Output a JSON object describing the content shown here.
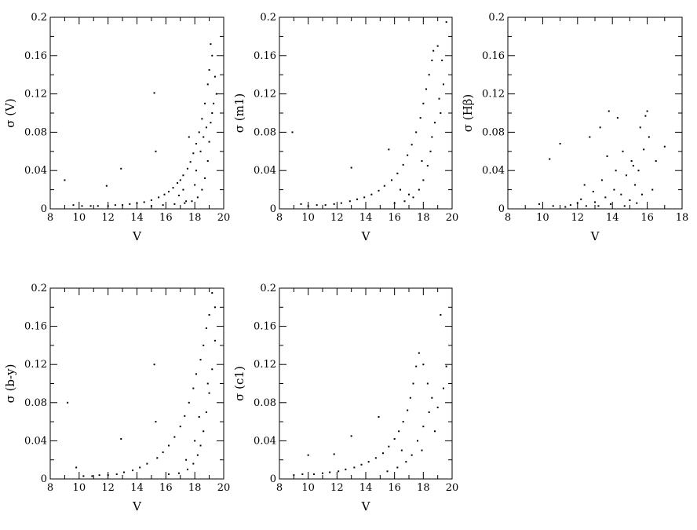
{
  "chart_data": [
    {
      "type": "scatter",
      "xlabel": "V",
      "ylabel": "σ (V)",
      "xlim": [
        8,
        20
      ],
      "ylim": [
        0,
        0.2
      ],
      "xticks": [
        "8",
        "10",
        "12",
        "14",
        "16",
        "18",
        "20"
      ],
      "yticks": [
        "0",
        "0.04",
        "0.08",
        "0.12",
        "0.16",
        "0.2"
      ],
      "series": [
        {
          "points": [
            [
              9.0,
              0.03
            ],
            [
              9.6,
              0.004
            ],
            [
              10.2,
              0.003
            ],
            [
              10.8,
              0.003
            ],
            [
              11.3,
              0.003
            ],
            [
              11.9,
              0.024
            ],
            [
              12.0,
              0.003
            ],
            [
              12.5,
              0.004
            ],
            [
              12.9,
              0.042
            ],
            [
              13.0,
              0.004
            ],
            [
              13.5,
              0.005
            ],
            [
              14.0,
              0.006
            ],
            [
              14.5,
              0.007
            ],
            [
              15.0,
              0.009
            ],
            [
              15.2,
              0.121
            ],
            [
              15.3,
              0.06
            ],
            [
              15.5,
              0.012
            ],
            [
              15.9,
              0.015
            ],
            [
              16.2,
              0.018
            ],
            [
              16.5,
              0.022
            ],
            [
              16.8,
              0.027
            ],
            [
              17.0,
              0.03
            ],
            [
              17.2,
              0.035
            ],
            [
              17.5,
              0.042
            ],
            [
              17.7,
              0.049
            ],
            [
              17.9,
              0.058
            ],
            [
              18.1,
              0.068
            ],
            [
              18.3,
              0.08
            ],
            [
              18.5,
              0.094
            ],
            [
              18.7,
              0.11
            ],
            [
              18.9,
              0.13
            ],
            [
              19.0,
              0.145
            ],
            [
              19.1,
              0.172
            ],
            [
              19.2,
              0.16
            ],
            [
              15.0,
              0.003
            ],
            [
              15.8,
              0.004
            ],
            [
              16.6,
              0.005
            ],
            [
              17.3,
              0.006
            ],
            [
              17.8,
              0.008
            ],
            [
              18.2,
              0.012
            ],
            [
              18.5,
              0.02
            ],
            [
              18.7,
              0.032
            ],
            [
              18.9,
              0.05
            ],
            [
              19.0,
              0.07
            ],
            [
              19.1,
              0.09
            ],
            [
              19.3,
              0.11
            ],
            [
              19.4,
              0.138
            ],
            [
              18.1,
              0.04
            ],
            [
              18.4,
              0.06
            ],
            [
              18.6,
              0.075
            ],
            [
              18.8,
              0.085
            ],
            [
              19.2,
              0.1
            ],
            [
              17.4,
              0.008
            ],
            [
              16.9,
              0.014
            ],
            [
              19.5,
              0.12
            ],
            [
              17.6,
              0.075
            ],
            [
              17.2,
              0.02
            ],
            [
              18.0,
              0.025
            ]
          ]
        }
      ]
    },
    {
      "type": "scatter",
      "xlabel": "V",
      "ylabel": "σ (m1)",
      "xlim": [
        8,
        20
      ],
      "ylim": [
        0,
        0.2
      ],
      "xticks": [
        "8",
        "10",
        "12",
        "14",
        "16",
        "18",
        "20"
      ],
      "yticks": [
        "0",
        "0.04",
        "0.08",
        "0.12",
        "0.16",
        "0.2"
      ],
      "series": [
        {
          "points": [
            [
              8.9,
              0.08
            ],
            [
              9.5,
              0.005
            ],
            [
              10.0,
              0.003
            ],
            [
              10.6,
              0.004
            ],
            [
              11.2,
              0.004
            ],
            [
              11.8,
              0.005
            ],
            [
              12.3,
              0.006
            ],
            [
              12.9,
              0.008
            ],
            [
              13.0,
              0.043
            ],
            [
              13.4,
              0.01
            ],
            [
              13.9,
              0.012
            ],
            [
              14.4,
              0.015
            ],
            [
              14.9,
              0.019
            ],
            [
              15.3,
              0.024
            ],
            [
              15.6,
              0.062
            ],
            [
              15.8,
              0.03
            ],
            [
              16.2,
              0.037
            ],
            [
              16.6,
              0.046
            ],
            [
              16.9,
              0.056
            ],
            [
              17.2,
              0.067
            ],
            [
              17.5,
              0.08
            ],
            [
              17.8,
              0.095
            ],
            [
              18.0,
              0.11
            ],
            [
              18.2,
              0.125
            ],
            [
              18.4,
              0.14
            ],
            [
              18.6,
              0.155
            ],
            [
              18.7,
              0.165
            ],
            [
              19.0,
              0.17
            ],
            [
              19.3,
              0.155
            ],
            [
              19.6,
              0.195
            ],
            [
              16.0,
              0.006
            ],
            [
              16.7,
              0.008
            ],
            [
              17.3,
              0.012
            ],
            [
              17.7,
              0.02
            ],
            [
              18.0,
              0.03
            ],
            [
              18.3,
              0.045
            ],
            [
              18.5,
              0.06
            ],
            [
              18.8,
              0.09
            ],
            [
              19.1,
              0.115
            ],
            [
              19.4,
              0.13
            ],
            [
              17.9,
              0.05
            ],
            [
              17.0,
              0.015
            ],
            [
              16.4,
              0.02
            ],
            [
              18.6,
              0.075
            ],
            [
              19.2,
              0.1
            ]
          ]
        }
      ]
    },
    {
      "type": "scatter",
      "xlabel": "V",
      "ylabel": "σ (Hβ)",
      "xlim": [
        8,
        18
      ],
      "ylim": [
        0,
        0.2
      ],
      "xticks": [
        "8",
        "10",
        "12",
        "14",
        "16",
        "18"
      ],
      "yticks": [
        "0",
        "0.04",
        "0.08",
        "0.12",
        "0.16",
        "0.2"
      ],
      "series": [
        {
          "points": [
            [
              9.8,
              0.005
            ],
            [
              10.4,
              0.052
            ],
            [
              10.6,
              0.003
            ],
            [
              11.0,
              0.068
            ],
            [
              11.3,
              0.002
            ],
            [
              11.6,
              0.004
            ],
            [
              12.0,
              0.006
            ],
            [
              12.2,
              0.01
            ],
            [
              12.5,
              0.003
            ],
            [
              12.7,
              0.075
            ],
            [
              12.9,
              0.018
            ],
            [
              13.0,
              0.007
            ],
            [
              13.2,
              0.003
            ],
            [
              13.3,
              0.085
            ],
            [
              13.4,
              0.03
            ],
            [
              13.6,
              0.012
            ],
            [
              13.8,
              0.102
            ],
            [
              13.9,
              0.005
            ],
            [
              14.1,
              0.02
            ],
            [
              14.2,
              0.04
            ],
            [
              14.3,
              0.095
            ],
            [
              14.5,
              0.015
            ],
            [
              14.7,
              0.003
            ],
            [
              14.8,
              0.035
            ],
            [
              15.0,
              0.009
            ],
            [
              15.1,
              0.05
            ],
            [
              15.3,
              0.025
            ],
            [
              15.4,
              0.006
            ],
            [
              15.5,
              0.04
            ],
            [
              15.6,
              0.085
            ],
            [
              15.7,
              0.015
            ],
            [
              15.8,
              0.062
            ],
            [
              15.9,
              0.097
            ],
            [
              16.0,
              0.102
            ],
            [
              16.1,
              0.075
            ],
            [
              16.3,
              0.02
            ],
            [
              16.5,
              0.05
            ],
            [
              17.0,
              0.065
            ],
            [
              12.4,
              0.025
            ],
            [
              13.7,
              0.055
            ],
            [
              14.6,
              0.06
            ],
            [
              15.2,
              0.045
            ]
          ]
        }
      ]
    },
    {
      "type": "scatter",
      "xlabel": "V",
      "ylabel": "σ (b-y)",
      "xlim": [
        8,
        20
      ],
      "ylim": [
        0,
        0.2
      ],
      "xticks": [
        "8",
        "10",
        "12",
        "14",
        "16",
        "18",
        "20"
      ],
      "yticks": [
        "0",
        "0.04",
        "0.08",
        "0.12",
        "0.16",
        "0.2"
      ],
      "series": [
        {
          "points": [
            [
              9.2,
              0.08
            ],
            [
              9.8,
              0.012
            ],
            [
              10.3,
              0.003
            ],
            [
              10.9,
              0.003
            ],
            [
              11.4,
              0.004
            ],
            [
              12.0,
              0.004
            ],
            [
              12.6,
              0.005
            ],
            [
              12.9,
              0.042
            ],
            [
              13.1,
              0.007
            ],
            [
              13.7,
              0.009
            ],
            [
              14.2,
              0.012
            ],
            [
              14.7,
              0.016
            ],
            [
              15.2,
              0.12
            ],
            [
              15.3,
              0.06
            ],
            [
              15.4,
              0.022
            ],
            [
              15.8,
              0.028
            ],
            [
              16.2,
              0.035
            ],
            [
              16.6,
              0.044
            ],
            [
              17.0,
              0.055
            ],
            [
              17.3,
              0.066
            ],
            [
              17.6,
              0.08
            ],
            [
              17.9,
              0.095
            ],
            [
              18.1,
              0.11
            ],
            [
              18.4,
              0.125
            ],
            [
              18.6,
              0.14
            ],
            [
              18.8,
              0.158
            ],
            [
              19.0,
              0.172
            ],
            [
              19.2,
              0.195
            ],
            [
              19.4,
              0.18
            ],
            [
              16.2,
              0.005
            ],
            [
              16.9,
              0.006
            ],
            [
              17.5,
              0.01
            ],
            [
              17.9,
              0.016
            ],
            [
              18.2,
              0.025
            ],
            [
              18.4,
              0.035
            ],
            [
              18.6,
              0.05
            ],
            [
              18.8,
              0.07
            ],
            [
              19.0,
              0.09
            ],
            [
              19.2,
              0.115
            ],
            [
              19.4,
              0.145
            ],
            [
              18.0,
              0.04
            ],
            [
              18.3,
              0.065
            ],
            [
              18.9,
              0.1
            ],
            [
              17.4,
              0.02
            ]
          ]
        }
      ]
    },
    {
      "type": "scatter",
      "xlabel": "V",
      "ylabel": "σ (c1)",
      "xlim": [
        8,
        20
      ],
      "ylim": [
        0,
        0.2
      ],
      "xticks": [
        "8",
        "10",
        "12",
        "14",
        "16",
        "18",
        "20"
      ],
      "yticks": [
        "0",
        "0.04",
        "0.08",
        "0.12",
        "0.16",
        "0.2"
      ],
      "series": [
        {
          "points": [
            [
              9.0,
              0.004
            ],
            [
              9.6,
              0.005
            ],
            [
              10.0,
              0.025
            ],
            [
              10.4,
              0.005
            ],
            [
              11.0,
              0.006
            ],
            [
              11.5,
              0.007
            ],
            [
              11.8,
              0.026
            ],
            [
              12.1,
              0.008
            ],
            [
              12.6,
              0.01
            ],
            [
              13.0,
              0.045
            ],
            [
              13.2,
              0.012
            ],
            [
              13.7,
              0.015
            ],
            [
              14.2,
              0.018
            ],
            [
              14.7,
              0.022
            ],
            [
              14.9,
              0.065
            ],
            [
              15.2,
              0.027
            ],
            [
              15.6,
              0.034
            ],
            [
              16.0,
              0.042
            ],
            [
              16.3,
              0.05
            ],
            [
              16.6,
              0.06
            ],
            [
              16.9,
              0.072
            ],
            [
              17.1,
              0.085
            ],
            [
              17.3,
              0.1
            ],
            [
              17.5,
              0.118
            ],
            [
              17.7,
              0.132
            ],
            [
              18.0,
              0.12
            ],
            [
              18.3,
              0.1
            ],
            [
              18.6,
              0.085
            ],
            [
              19.0,
              0.075
            ],
            [
              19.2,
              0.172
            ],
            [
              19.6,
              0.118
            ],
            [
              15.5,
              0.008
            ],
            [
              16.2,
              0.012
            ],
            [
              16.8,
              0.018
            ],
            [
              17.2,
              0.025
            ],
            [
              17.6,
              0.04
            ],
            [
              18.0,
              0.055
            ],
            [
              18.4,
              0.07
            ],
            [
              18.8,
              0.05
            ],
            [
              19.4,
              0.095
            ],
            [
              16.5,
              0.03
            ],
            [
              17.9,
              0.03
            ]
          ]
        }
      ]
    }
  ]
}
